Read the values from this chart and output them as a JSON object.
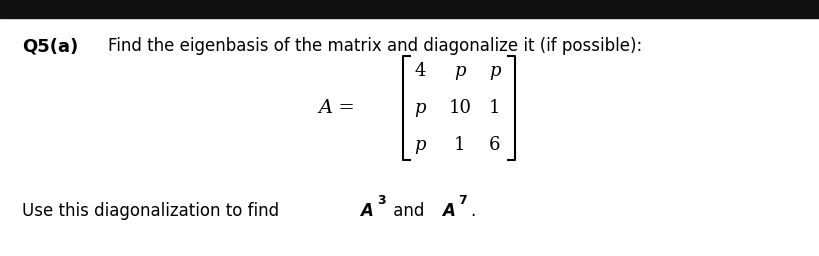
{
  "bg_color": "#ffffff",
  "header_bg_color": "#111111",
  "q_label": "Q5(a)",
  "title_text": "Find the eigenbasis of the matrix and diagonalize it (if possible):",
  "matrix_A_label": "A =",
  "matrix_rows": [
    [
      "4",
      "p",
      "p"
    ],
    [
      "p",
      "10",
      "1"
    ],
    [
      "p",
      "1",
      "6"
    ]
  ],
  "bottom_text_normal": "Use this diagonalization to find ",
  "bottom_sup3_base": "A",
  "bottom_sup3_exp": "3",
  "bottom_and": " and ",
  "bottom_sup7_base": "A",
  "bottom_sup7_exp": "7",
  "bottom_end": "."
}
